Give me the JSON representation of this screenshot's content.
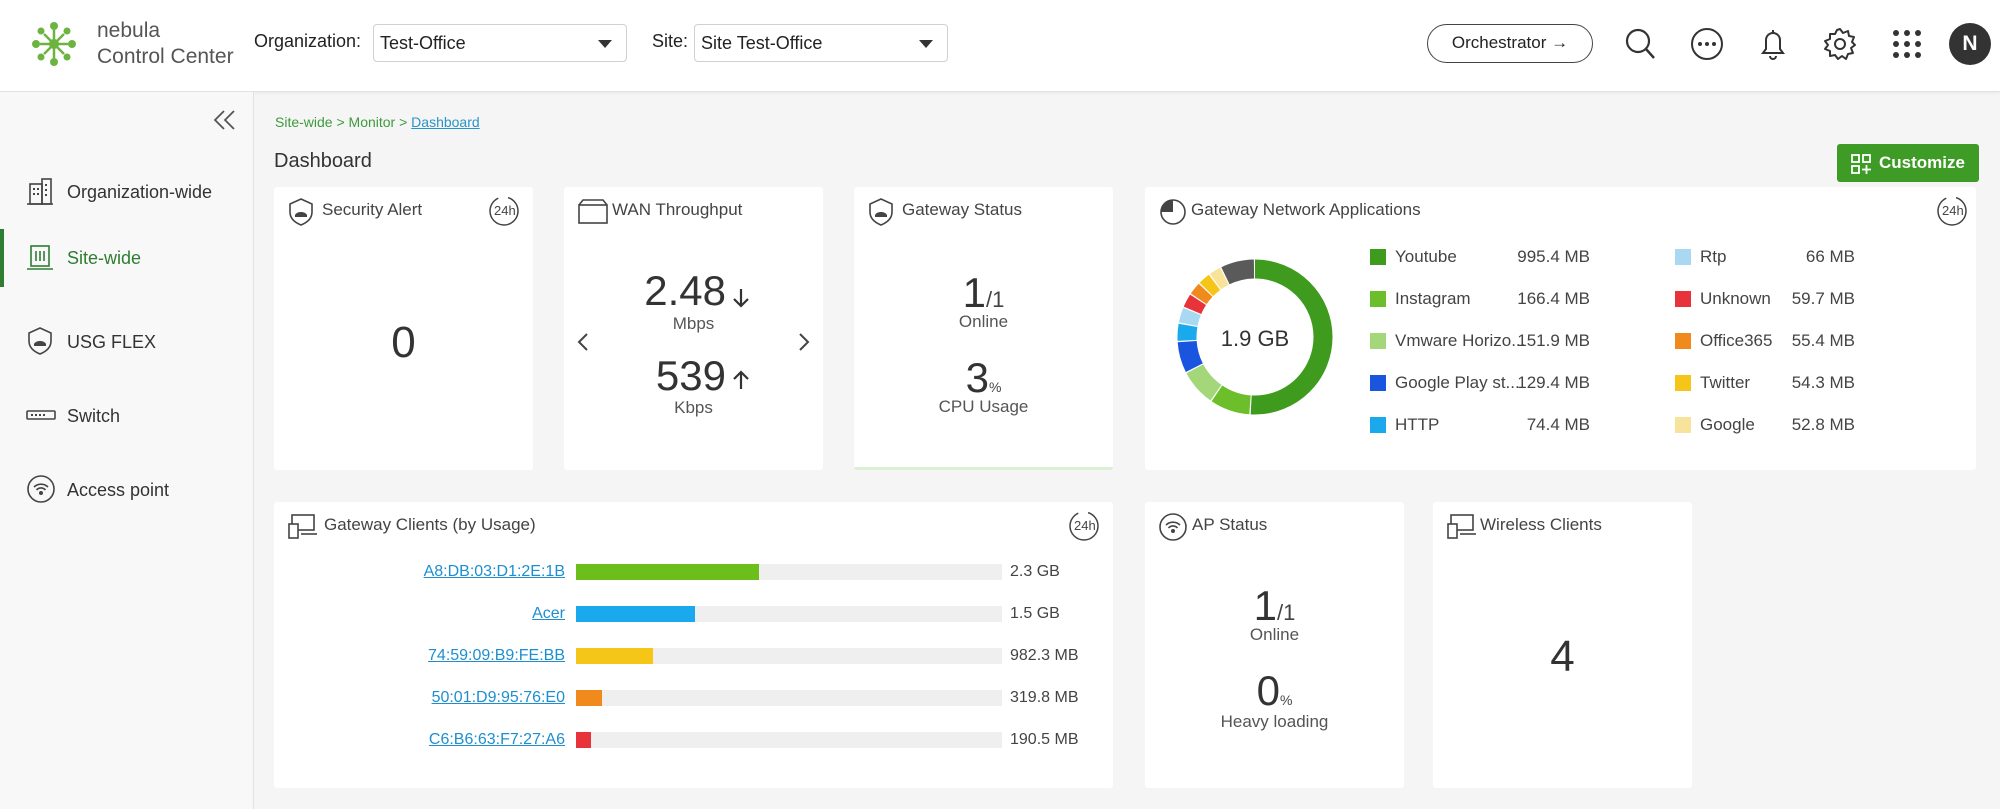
{
  "header": {
    "brand_line1": "nebula",
    "brand_line2": "Control Center",
    "org_label": "Organization:",
    "org_value": "Test-Office",
    "site_label": "Site:",
    "site_value": "Site Test-Office",
    "orchestrator_label": "Orchestrator →",
    "avatar_initial": "N"
  },
  "sidebar": {
    "items": [
      {
        "label": "Organization-wide",
        "icon": "building-icon"
      },
      {
        "label": "Site-wide",
        "icon": "site-icon",
        "active": true
      },
      {
        "label": "USG FLEX",
        "icon": "shield-icon"
      },
      {
        "label": "Switch",
        "icon": "switch-icon"
      },
      {
        "label": "Access point",
        "icon": "access-point-icon"
      }
    ]
  },
  "breadcrumb": {
    "part1": "Site-wide > Monitor > ",
    "current": "Dashboard"
  },
  "page_title": "Dashboard",
  "customize_label": "Customize",
  "badge_24h": "24h",
  "security_alert": {
    "title": "Security Alert",
    "value": "0"
  },
  "wan": {
    "title": "WAN Throughput",
    "down_value": "2.48",
    "down_unit": "Mbps",
    "up_value": "539",
    "up_unit": "Kbps"
  },
  "gateway_status": {
    "title": "Gateway Status",
    "online_num": "1",
    "online_den": "/1",
    "online_label": "Online",
    "cpu_value": "3",
    "cpu_unit": "%",
    "cpu_label": "CPU Usage"
  },
  "gna": {
    "title": "Gateway Network Applications",
    "total": "1.9 GB",
    "apps": [
      {
        "name": "Youtube",
        "value": "995.4 MB",
        "mb": 995.4,
        "color": "#3e9b1e"
      },
      {
        "name": "Instagram",
        "value": "166.4 MB",
        "mb": 166.4,
        "color": "#6cbf2a"
      },
      {
        "name": "Vmware Horizo...",
        "value": "151.9 MB",
        "mb": 151.9,
        "color": "#a4d67a"
      },
      {
        "name": "Google Play st...",
        "value": "129.4 MB",
        "mb": 129.4,
        "color": "#1a55e0"
      },
      {
        "name": "HTTP",
        "value": "74.4 MB",
        "mb": 74.4,
        "color": "#1aa9ec"
      },
      {
        "name": "Rtp",
        "value": "66 MB",
        "mb": 66,
        "color": "#a9d8f2"
      },
      {
        "name": "Unknown",
        "value": "59.7 MB",
        "mb": 59.7,
        "color": "#e8333a"
      },
      {
        "name": "Office365",
        "value": "55.4 MB",
        "mb": 55.4,
        "color": "#f08a1c"
      },
      {
        "name": "Twitter",
        "value": "54.3 MB",
        "mb": 54.3,
        "color": "#f5c518"
      },
      {
        "name": "Google",
        "value": "52.8 MB",
        "mb": 52.8,
        "color": "#f7e49a"
      }
    ],
    "other_mb": 140,
    "other_color": "#5a5a5a"
  },
  "gateway_clients": {
    "title": "Gateway Clients (by Usage)",
    "clients": [
      {
        "name": "A8:DB:03:D1:2E:1B",
        "value": "2.3 GB",
        "fraction": 0.43,
        "color": "#6cbf1a"
      },
      {
        "name": "Acer",
        "value": "1.5 GB",
        "fraction": 0.28,
        "color": "#1aa9ec"
      },
      {
        "name": "74:59:09:B9:FE:BB",
        "value": "982.3 MB",
        "fraction": 0.18,
        "color": "#f5c518"
      },
      {
        "name": "50:01:D9:95:76:E0",
        "value": "319.8 MB",
        "fraction": 0.06,
        "color": "#f08a1c"
      },
      {
        "name": "C6:B6:63:F7:27:A6",
        "value": "190.5 MB",
        "fraction": 0.035,
        "color": "#e8333a"
      }
    ]
  },
  "ap_status": {
    "title": "AP Status",
    "online_num": "1",
    "online_den": "/1",
    "online_label": "Online",
    "load_value": "0",
    "load_unit": "%",
    "load_label": "Heavy loading"
  },
  "wireless_clients": {
    "title": "Wireless Clients",
    "value": "4"
  }
}
